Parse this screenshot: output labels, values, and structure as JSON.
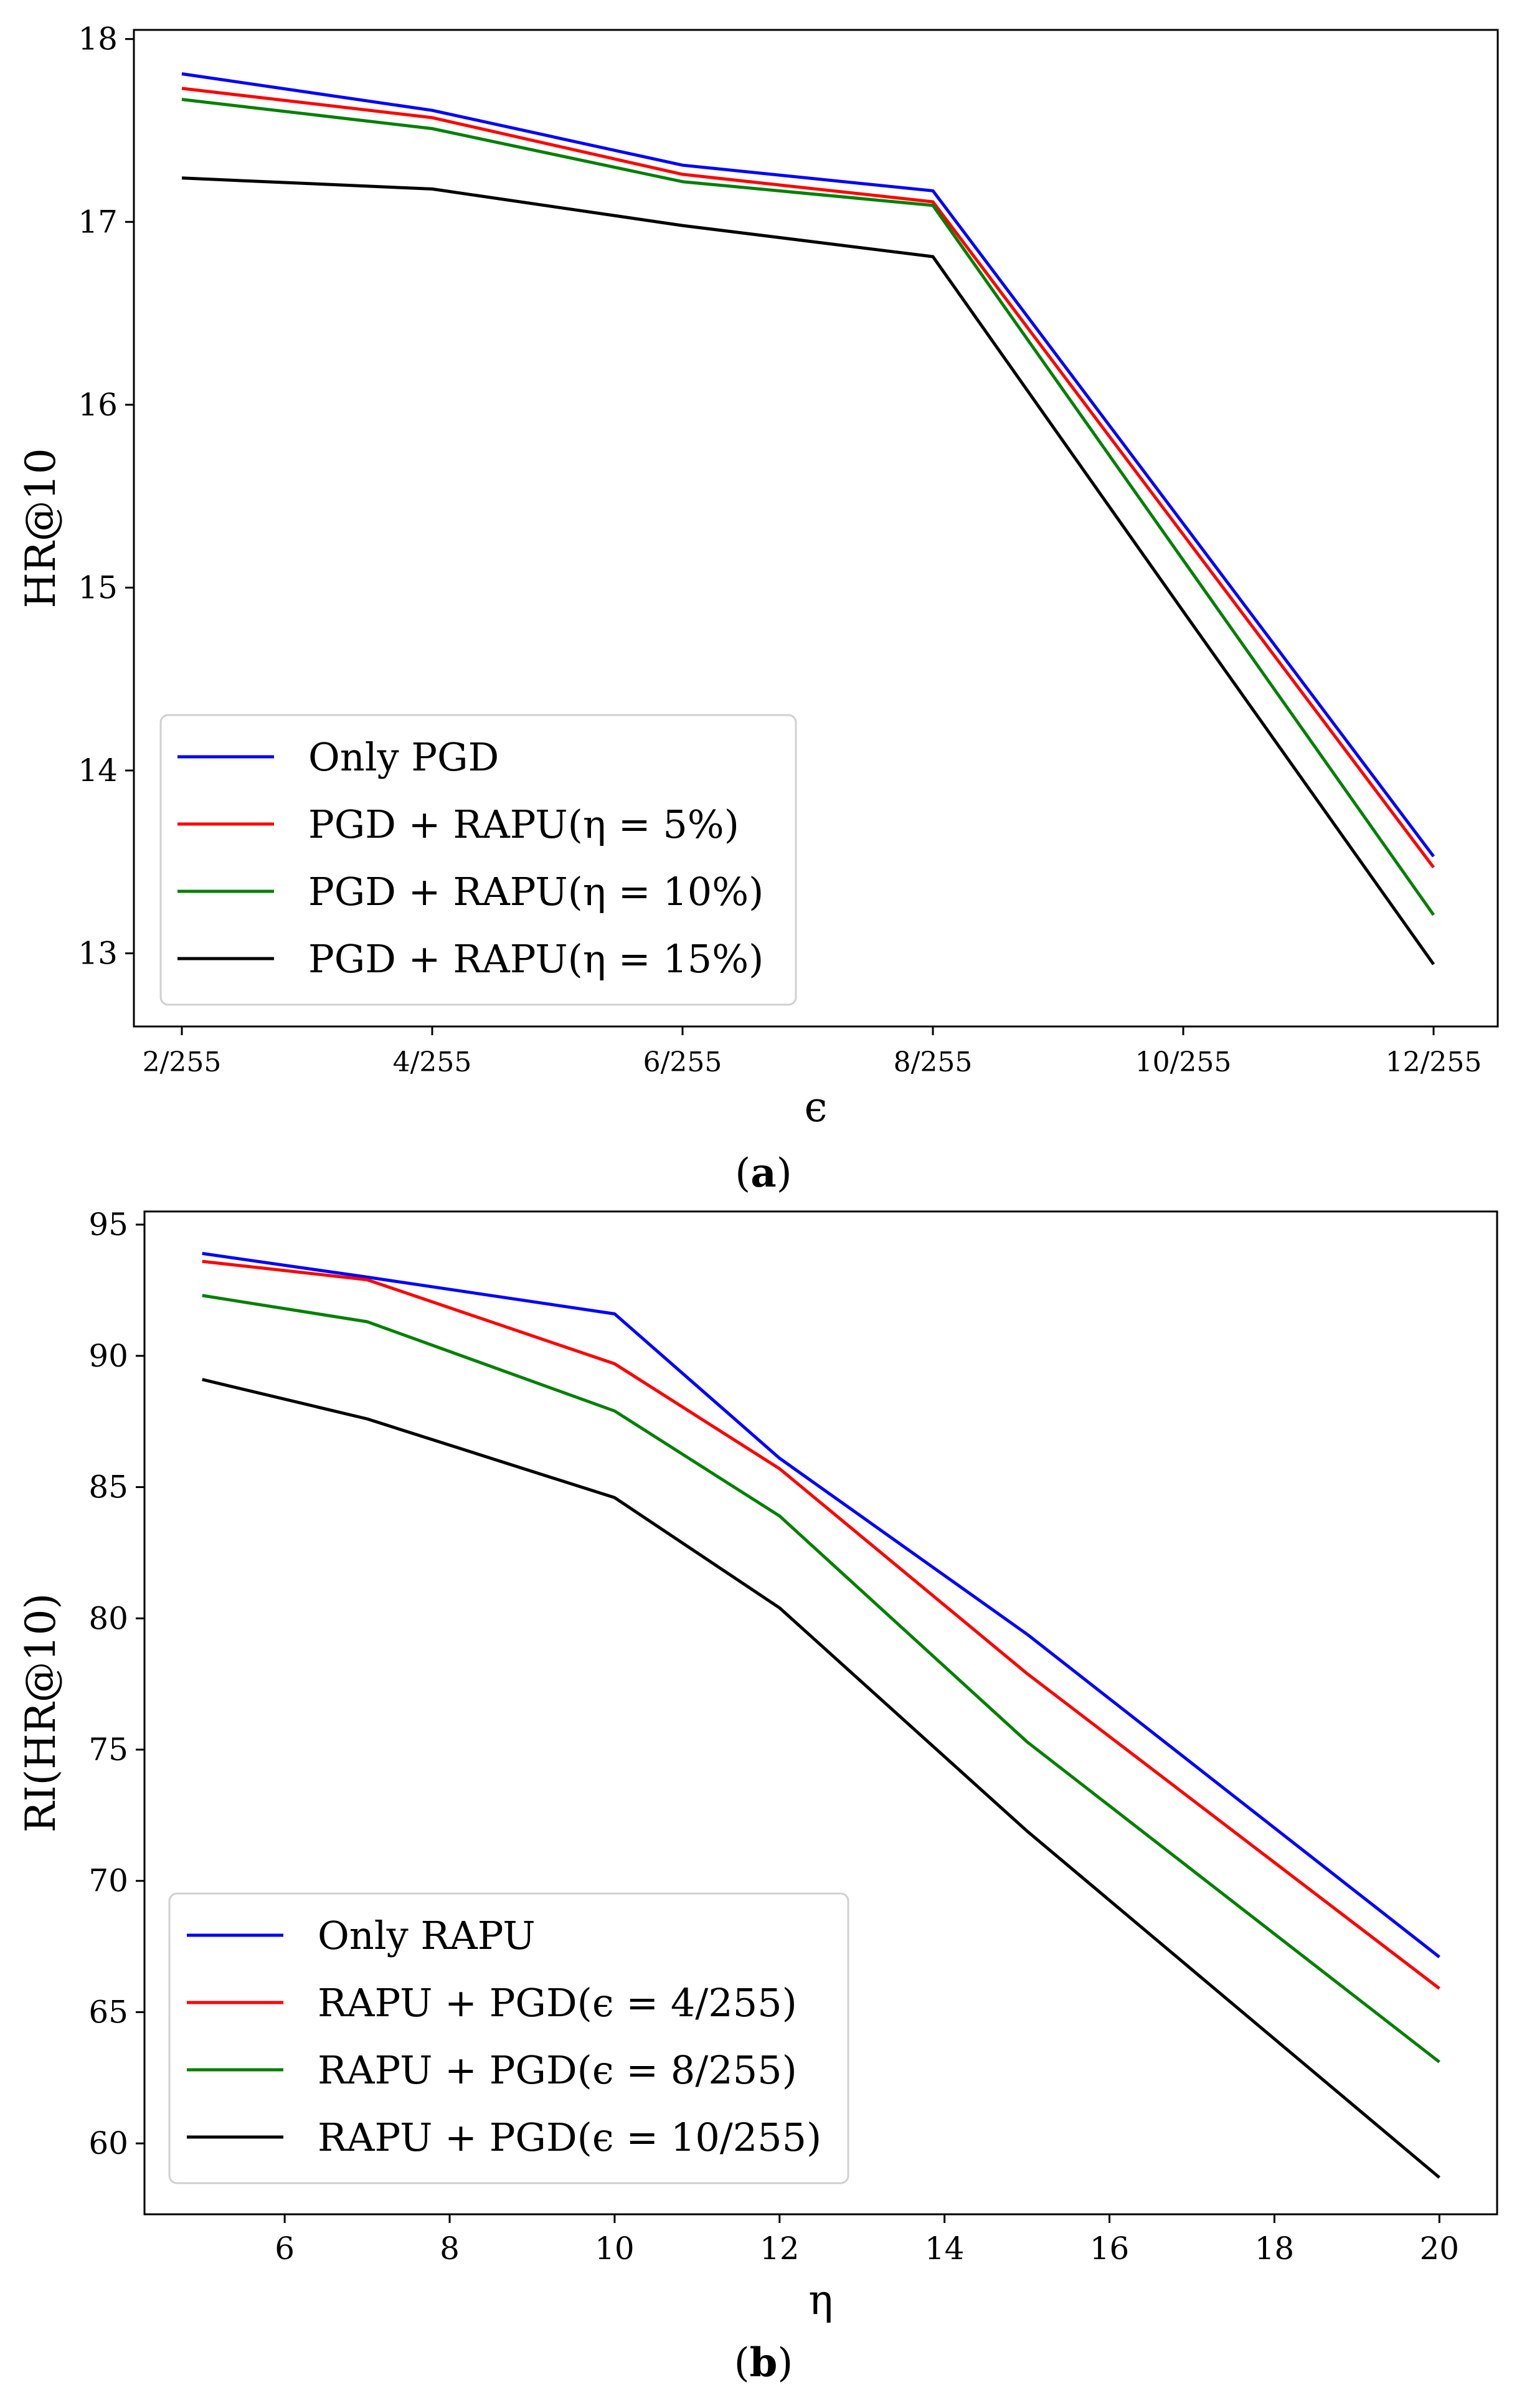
{
  "chart_data": [
    {
      "type": "line",
      "caption": "a",
      "x": [
        "2/255",
        "4/255",
        "6/255",
        "8/255",
        "10/255",
        "12/255"
      ],
      "xlabel": "ϵ",
      "ylabel": "HR@10",
      "ylim": [
        12.6,
        18.05
      ],
      "yticks": [
        "13",
        "14",
        "15",
        "16",
        "17",
        "18"
      ],
      "grid": false,
      "legend": "lower-left",
      "series": [
        {
          "name": "Only PGD",
          "color": "#0000ff",
          "values": [
            17.81,
            17.61,
            17.31,
            17.17,
            15.35,
            13.53
          ]
        },
        {
          "name": "PGD + RAPU(η = 5%)",
          "color": "#ff0000",
          "values": [
            17.73,
            17.57,
            17.26,
            17.11,
            15.29,
            13.47
          ]
        },
        {
          "name": "PGD + RAPU(η = 10%)",
          "color": "#008000",
          "values": [
            17.67,
            17.51,
            17.22,
            17.09,
            15.15,
            13.21
          ]
        },
        {
          "name": "PGD + RAPU(η = 15%)",
          "color": "#000000",
          "values": [
            17.24,
            17.18,
            16.98,
            16.81,
            14.87,
            12.94
          ]
        }
      ]
    },
    {
      "type": "line",
      "caption": "b",
      "x": [
        5,
        7,
        10,
        12,
        15,
        20
      ],
      "xlabel": "η",
      "ylabel": "RI(HR@10)",
      "xlim": [
        4.3,
        20.7
      ],
      "ylim": [
        57.3,
        95.5
      ],
      "xticks": [
        "6",
        "8",
        "10",
        "12",
        "14",
        "16",
        "18",
        "20"
      ],
      "yticks": [
        "60",
        "65",
        "70",
        "75",
        "80",
        "85",
        "90",
        "95"
      ],
      "grid": false,
      "legend": "lower-left",
      "series": [
        {
          "name": "Only RAPU",
          "color": "#0000ff",
          "values": [
            93.9,
            93.0,
            91.6,
            86.1,
            79.4,
            67.1
          ]
        },
        {
          "name": "RAPU + PGD(ϵ = 4/255)",
          "color": "#ff0000",
          "values": [
            93.6,
            92.9,
            89.7,
            85.7,
            77.9,
            65.9
          ]
        },
        {
          "name": "RAPU + PGD(ϵ = 8/255)",
          "color": "#008000",
          "values": [
            92.3,
            91.3,
            87.9,
            83.9,
            75.3,
            63.1
          ]
        },
        {
          "name": "RAPU + PGD(ϵ = 10/255)",
          "color": "#000000",
          "values": [
            89.1,
            87.6,
            84.6,
            80.4,
            71.9,
            58.7
          ]
        }
      ]
    }
  ]
}
